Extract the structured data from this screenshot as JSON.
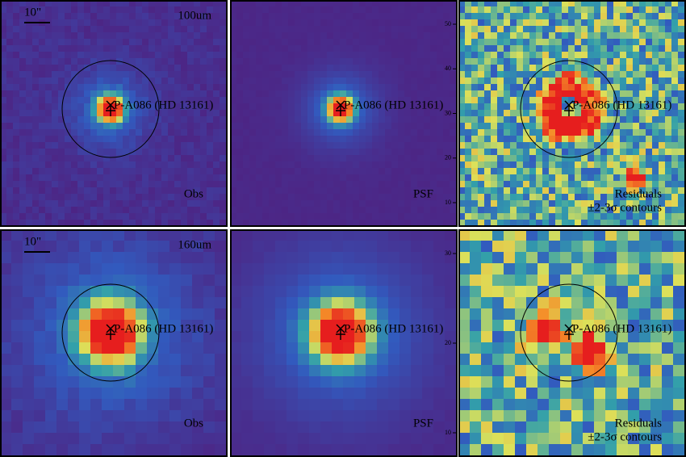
{
  "panels": [
    {
      "band": "100um",
      "scale": "10\"",
      "source": "P-A086 (HD 13161)",
      "kind": "Obs"
    },
    {
      "source": "P-A086 (HD 13161)",
      "kind": "PSF",
      "ticks": [
        "50",
        "40",
        "30",
        "20",
        "10"
      ]
    },
    {
      "source": "P-A086 (HD 13161)",
      "kind": "Residuals",
      "contours": "±2-3σ contours"
    },
    {
      "band": "160um",
      "scale": "10\"",
      "source": "P-A086 (HD 13161)",
      "kind": "Obs"
    },
    {
      "source": "P-A086 (HD 13161)",
      "kind": "PSF",
      "ticks": [
        "30",
        "20",
        "10"
      ]
    },
    {
      "source": "P-A086 (HD 13161)",
      "kind": "Residuals",
      "contours": "±2-3σ contours"
    }
  ]
}
